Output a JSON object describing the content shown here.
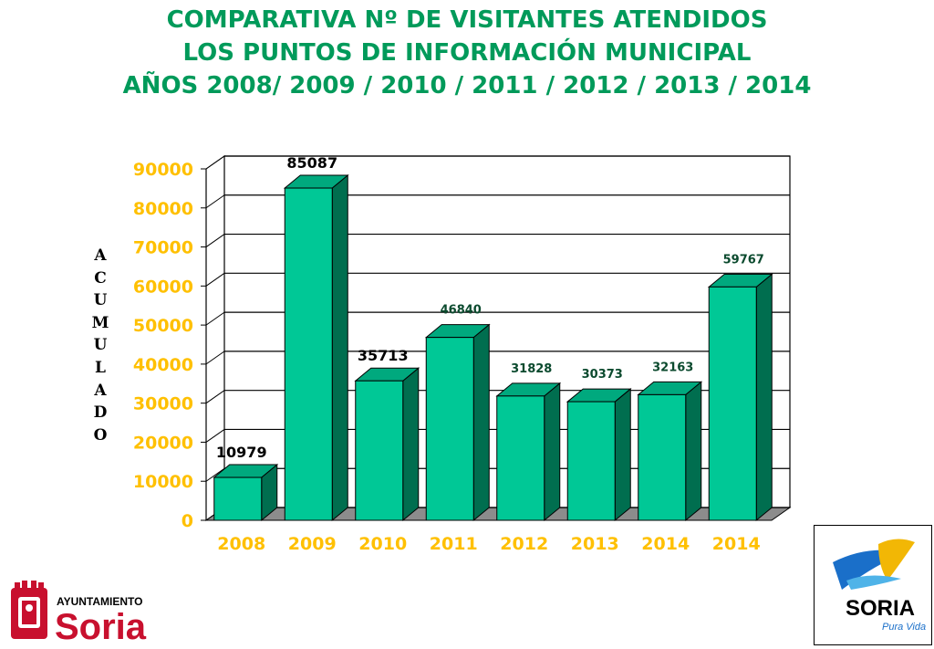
{
  "title": {
    "line1": "COMPARATIVA Nº DE VISITANTES ATENDIDOS",
    "line2": "LOS PUNTOS DE INFORMACIÓN MUNICIPAL",
    "line3": "AÑOS 2008/ 2009 / 2010 / 2011 / 2012 / 2013 / 2014"
  },
  "chart_data": {
    "type": "bar",
    "categories": [
      "2008",
      "2009",
      "2010",
      "2011",
      "2012",
      "2013",
      "2014",
      "2014"
    ],
    "values": [
      10979,
      85087,
      35713,
      46840,
      31828,
      30373,
      32163,
      59767
    ],
    "data_labels": [
      "10979",
      "85087",
      "35713",
      "46840",
      "31828",
      "30373",
      "32163",
      "59767"
    ],
    "ylabel": "ACUMULADO",
    "ylim": [
      0,
      90000
    ],
    "yticks": [
      "0",
      "10000",
      "20000",
      "30000",
      "40000",
      "50000",
      "60000",
      "70000",
      "80000",
      "90000"
    ],
    "grid": true,
    "legend": "none",
    "bar_color": "#00c896",
    "tick_color": "#ffc000"
  },
  "logos": {
    "left_header": "AYUNTAMIENTO",
    "left_name": "Soria",
    "right_name": "SORIA",
    "right_tagline": "Pura Vida"
  }
}
